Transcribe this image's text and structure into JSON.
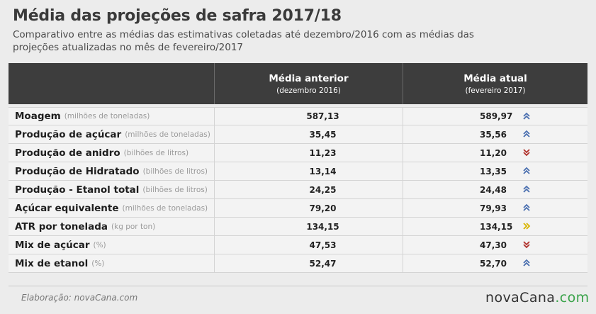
{
  "title": "Média das projeções de safra 2017/18",
  "subtitle": "Comparativo entre as médias das estimativas coletadas até dezembro/2016 com as médias das projeções atualizadas no mês de fevereiro/2017",
  "table": {
    "col_prev_title": "Média anterior",
    "col_prev_sub": "(dezembro 2016)",
    "col_cur_title": "Média atual",
    "col_cur_sub": "(fevereiro 2017)",
    "rows": [
      {
        "label": "Moagem",
        "unit": "(milhões de toneladas)",
        "prev": "587,13",
        "cur": "589,97",
        "trend": "up"
      },
      {
        "label": "Produção de açúcar",
        "unit": "(milhões de toneladas)",
        "prev": "35,45",
        "cur": "35,56",
        "trend": "up"
      },
      {
        "label": "Produção de anidro",
        "unit": "(bilhões de litros)",
        "prev": "11,23",
        "cur": "11,20",
        "trend": "down"
      },
      {
        "label": "Produção de Hidratado",
        "unit": "(bilhões de litros)",
        "prev": "13,14",
        "cur": "13,35",
        "trend": "up"
      },
      {
        "label": "Produção - Etanol total",
        "unit": "(bilhões de litros)",
        "prev": "24,25",
        "cur": "24,48",
        "trend": "up"
      },
      {
        "label": "Açúcar equivalente",
        "unit": "(milhões de toneladas)",
        "prev": "79,20",
        "cur": "79,93",
        "trend": "up"
      },
      {
        "label": "ATR por tonelada",
        "unit": "(kg por ton)",
        "prev": "134,15",
        "cur": "134,15",
        "trend": "stable"
      },
      {
        "label": "Mix de açúcar",
        "unit": "(%)",
        "prev": "47,53",
        "cur": "47,30",
        "trend": "down"
      },
      {
        "label": "Mix de etanol",
        "unit": "(%)",
        "prev": "52,47",
        "cur": "52,70",
        "trend": "up"
      }
    ]
  },
  "trend_colors": {
    "up": "#4a6fb0",
    "down": "#b0302a",
    "stable": "#d8b400"
  },
  "footer": {
    "credit": "Elaboração: novaCana.com",
    "logo_main": "novaCana",
    "logo_dot": ".com"
  }
}
